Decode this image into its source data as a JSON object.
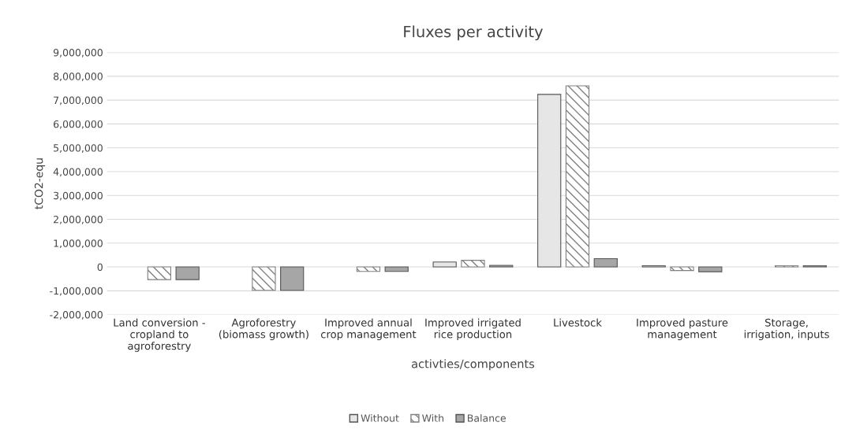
{
  "chart_data": {
    "type": "bar",
    "title": "Fluxes per activity",
    "xlabel": "activties/components",
    "ylabel": "tCO2-equ",
    "categories": [
      "Land conversion - cropland to agroforestry",
      "Agroforestry (biomass growth)",
      "Improved annual crop management",
      "Improved irrigated rice production",
      "Livestock",
      "Improved pasture management",
      "Storage, irrigation, inputs"
    ],
    "series": [
      {
        "name": "Without",
        "color": "#e6e6e6",
        "values": [
          null,
          null,
          null,
          210000,
          7240000,
          50000,
          null
        ]
      },
      {
        "name": "With",
        "color": "#808080",
        "values": [
          -530000,
          -980000,
          -190000,
          280000,
          7600000,
          -150000,
          50000
        ]
      },
      {
        "name": "Balance",
        "color": "#a6a6a6",
        "values": [
          -530000,
          -980000,
          -190000,
          70000,
          350000,
          -200000,
          50000
        ]
      }
    ],
    "ylim": [
      -2000000,
      9000000
    ],
    "yticks": [
      {
        "value": -2000000,
        "label": "-2,000,000"
      },
      {
        "value": -1000000,
        "label": "-1,000,000"
      },
      0,
      {
        "value": 1000000,
        "label": "1,000,000"
      },
      {
        "value": 2000000,
        "label": "2,000,000"
      },
      {
        "value": 3000000,
        "label": "3,000,000"
      },
      {
        "value": 4000000,
        "label": "4,000,000"
      },
      {
        "value": 5000000,
        "label": "5,000,000"
      },
      {
        "value": 6000000,
        "label": "6,000,000"
      },
      {
        "value": 7000000,
        "label": "7,000,000"
      },
      {
        "value": 8000000,
        "label": "8,000,000"
      },
      {
        "value": 9000000,
        "label": "9,000,000"
      }
    ],
    "grid": "y",
    "legend": "bottom"
  }
}
